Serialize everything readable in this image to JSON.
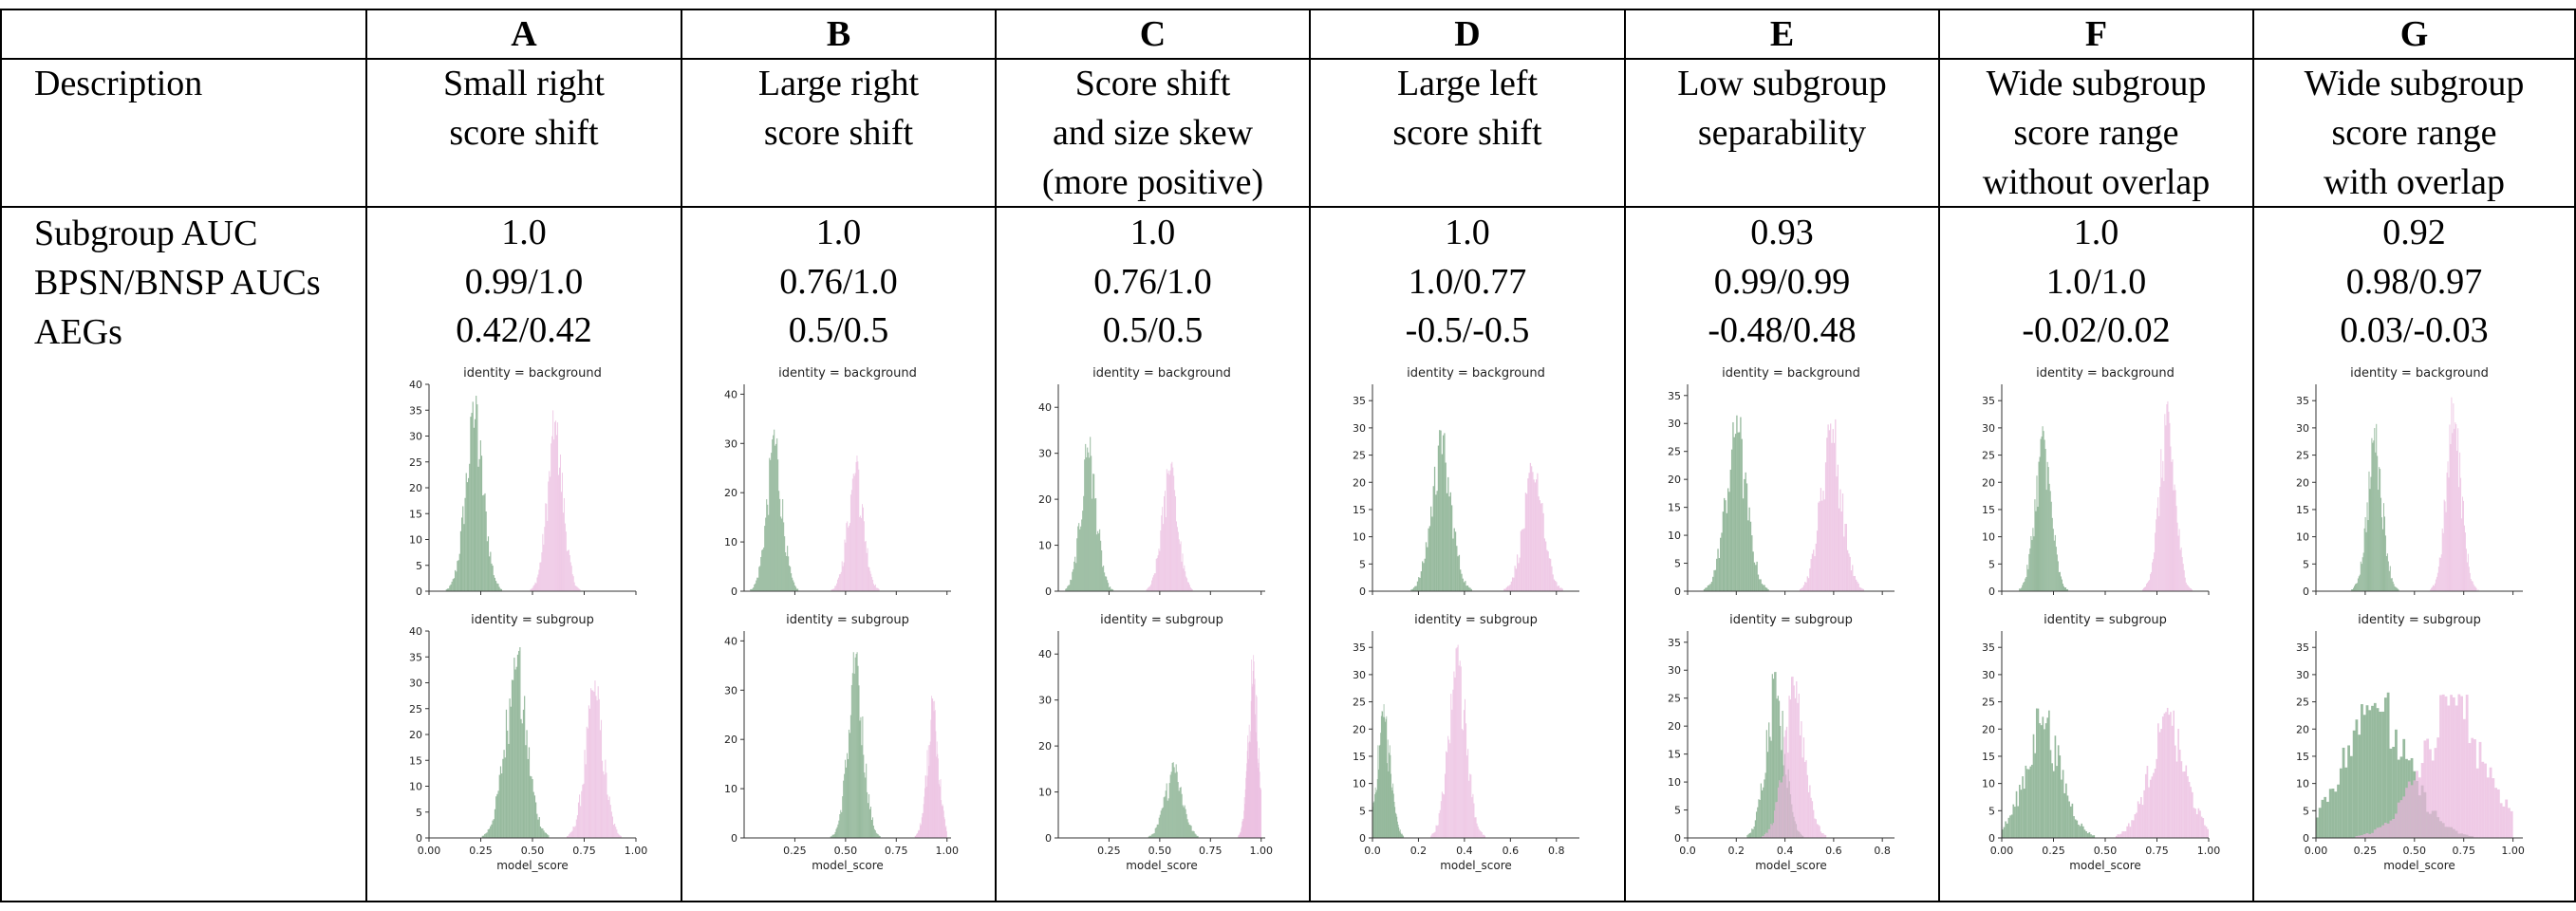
{
  "table": {
    "row_labels": {
      "description": "Description",
      "subgroup_auc": "Subgroup AUC",
      "bpsn_bnsp": "BPSN/BNSP AUCs",
      "aegs": "AEGs"
    },
    "columns": [
      {
        "header": "A",
        "desc_lines": [
          "Small right",
          "score shift"
        ],
        "subgroup_auc": "1.0",
        "bpsn_bnsp": "0.99/1.0",
        "aegs": "0.42/0.42"
      },
      {
        "header": "B",
        "desc_lines": [
          "Large right",
          "score shift"
        ],
        "subgroup_auc": "1.0",
        "bpsn_bnsp": "0.76/1.0",
        "aegs": "0.5/0.5"
      },
      {
        "header": "C",
        "desc_lines": [
          "Score shift",
          "and size skew",
          "(more positive)"
        ],
        "subgroup_auc": "1.0",
        "bpsn_bnsp": "0.76/1.0",
        "aegs": "0.5/0.5"
      },
      {
        "header": "D",
        "desc_lines": [
          "Large left",
          "score shift"
        ],
        "subgroup_auc": "1.0",
        "bpsn_bnsp": "1.0/0.77",
        "aegs": "-0.5/-0.5"
      },
      {
        "header": "E",
        "desc_lines": [
          "Low subgroup",
          "separability"
        ],
        "subgroup_auc": "0.93",
        "bpsn_bnsp": "0.99/0.99",
        "aegs": "-0.48/0.48"
      },
      {
        "header": "F",
        "desc_lines": [
          "Wide subgroup",
          "score range",
          "without overlap"
        ],
        "subgroup_auc": "1.0",
        "bpsn_bnsp": "1.0/1.0",
        "aegs": "-0.02/0.02"
      },
      {
        "header": "G",
        "desc_lines": [
          "Wide subgroup",
          "score range",
          "with overlap"
        ],
        "subgroup_auc": "0.92",
        "bpsn_bnsp": "0.98/0.97",
        "aegs": "0.03/-0.03"
      }
    ]
  },
  "chart_common": {
    "top_title": "identity = background",
    "bottom_title": "identity = subgroup",
    "xlabel": "model_score",
    "negative_color": "#6f9f78",
    "positive_color": "#e9b6dc",
    "spine_color": "#333333"
  },
  "chart_data": [
    {
      "type": "histogram",
      "panel": "A",
      "xticks": [
        "0.00",
        "0.25",
        "0.50",
        "0.75",
        "1.00"
      ],
      "xlim": [
        0,
        1
      ],
      "xtick_values": [
        0,
        0.25,
        0.5,
        0.75,
        1.0
      ],
      "top": {
        "title": "identity = background",
        "ylim": [
          0,
          40
        ],
        "yticks": [
          0,
          5,
          10,
          15,
          20,
          25,
          30,
          35,
          40
        ],
        "series": [
          {
            "name": "negative",
            "center": 0.22,
            "sd": 0.045,
            "peak": 38,
            "lo": 0.06,
            "hi": 0.38
          },
          {
            "name": "positive",
            "center": 0.61,
            "sd": 0.04,
            "peak": 35,
            "lo": 0.48,
            "hi": 0.75
          }
        ]
      },
      "bottom": {
        "title": "identity = subgroup",
        "ylim": [
          0,
          40
        ],
        "yticks": [
          0,
          5,
          10,
          15,
          20,
          25,
          30,
          35,
          40
        ],
        "series": [
          {
            "name": "negative",
            "center": 0.42,
            "sd": 0.055,
            "peak": 37,
            "lo": 0.25,
            "hi": 0.58
          },
          {
            "name": "positive",
            "center": 0.8,
            "sd": 0.045,
            "peak": 31,
            "lo": 0.65,
            "hi": 0.95
          }
        ]
      }
    },
    {
      "type": "histogram",
      "panel": "B",
      "xticks": [
        "0.25",
        "0.50",
        "0.75",
        "1.00"
      ],
      "xlim": [
        0,
        1.02
      ],
      "xtick_values": [
        0.25,
        0.5,
        0.75,
        1.0
      ],
      "top": {
        "title": "identity = background",
        "ylim": [
          0,
          42
        ],
        "yticks": [
          0,
          10,
          20,
          30,
          40
        ],
        "series": [
          {
            "name": "negative",
            "center": 0.15,
            "sd": 0.04,
            "peak": 33,
            "lo": 0.02,
            "hi": 0.3
          },
          {
            "name": "positive",
            "center": 0.55,
            "sd": 0.04,
            "peak": 28,
            "lo": 0.42,
            "hi": 0.68
          }
        ]
      },
      "bottom": {
        "title": "identity = subgroup",
        "ylim": [
          0,
          42
        ],
        "yticks": [
          0,
          10,
          20,
          30,
          40
        ],
        "series": [
          {
            "name": "negative",
            "center": 0.55,
            "sd": 0.04,
            "peak": 38,
            "lo": 0.42,
            "hi": 0.69
          },
          {
            "name": "positive",
            "center": 0.93,
            "sd": 0.03,
            "peak": 29,
            "lo": 0.82,
            "hi": 1.0
          }
        ]
      }
    },
    {
      "type": "histogram",
      "panel": "C",
      "xticks": [
        "0.25",
        "0.50",
        "0.75",
        "1.00"
      ],
      "xlim": [
        0,
        1.02
      ],
      "xtick_values": [
        0.25,
        0.5,
        0.75,
        1.0
      ],
      "top": {
        "title": "identity = background",
        "ylim": [
          0,
          45
        ],
        "yticks": [
          0,
          10,
          20,
          30,
          40
        ],
        "series": [
          {
            "name": "negative",
            "center": 0.15,
            "sd": 0.04,
            "peak": 34,
            "lo": 0.02,
            "hi": 0.3
          },
          {
            "name": "positive",
            "center": 0.55,
            "sd": 0.04,
            "peak": 29,
            "lo": 0.42,
            "hi": 0.68
          }
        ]
      },
      "bottom": {
        "title": "identity = subgroup",
        "ylim": [
          0,
          45
        ],
        "yticks": [
          0,
          10,
          20,
          30,
          40
        ],
        "series": [
          {
            "name": "negative",
            "center": 0.57,
            "sd": 0.045,
            "peak": 17,
            "lo": 0.42,
            "hi": 0.7
          },
          {
            "name": "positive",
            "center": 0.96,
            "sd": 0.025,
            "peak": 41,
            "lo": 0.86,
            "hi": 1.0
          }
        ]
      }
    },
    {
      "type": "histogram",
      "panel": "D",
      "xticks": [
        "0.0",
        "0.2",
        "0.4",
        "0.6",
        "0.8"
      ],
      "xlim": [
        0,
        0.9
      ],
      "xtick_values": [
        0,
        0.2,
        0.4,
        0.6,
        0.8
      ],
      "top": {
        "title": "identity = background",
        "ylim": [
          0,
          38
        ],
        "yticks": [
          0,
          5,
          10,
          15,
          20,
          25,
          30,
          35
        ],
        "series": [
          {
            "name": "negative",
            "center": 0.3,
            "sd": 0.045,
            "peak": 30,
            "lo": 0.14,
            "hi": 0.46
          },
          {
            "name": "positive",
            "center": 0.7,
            "sd": 0.045,
            "peak": 24,
            "lo": 0.55,
            "hi": 0.86
          }
        ]
      },
      "bottom": {
        "title": "identity = subgroup",
        "ylim": [
          0,
          38
        ],
        "yticks": [
          0,
          5,
          10,
          15,
          20,
          25,
          30,
          35
        ],
        "series": [
          {
            "name": "negative",
            "center": 0.05,
            "sd": 0.03,
            "peak": 25,
            "lo": 0.0,
            "hi": 0.17
          },
          {
            "name": "positive",
            "center": 0.37,
            "sd": 0.04,
            "peak": 36,
            "lo": 0.24,
            "hi": 0.5
          }
        ]
      }
    },
    {
      "type": "histogram",
      "panel": "E",
      "xticks": [
        "0.0",
        "0.2",
        "0.4",
        "0.6",
        "0.8"
      ],
      "xlim": [
        0,
        0.85
      ],
      "xtick_values": [
        0,
        0.2,
        0.4,
        0.6,
        0.8
      ],
      "top": {
        "title": "identity = background",
        "ylim": [
          0,
          37
        ],
        "yticks": [
          0,
          5,
          10,
          15,
          20,
          25,
          30,
          35
        ],
        "series": [
          {
            "name": "negative",
            "center": 0.2,
            "sd": 0.045,
            "peak": 32,
            "lo": 0.05,
            "hi": 0.36
          },
          {
            "name": "positive",
            "center": 0.59,
            "sd": 0.045,
            "peak": 32,
            "lo": 0.44,
            "hi": 0.74
          }
        ]
      },
      "bottom": {
        "title": "identity = subgroup",
        "ylim": [
          0,
          37
        ],
        "yticks": [
          0,
          5,
          10,
          15,
          20,
          25,
          30,
          35
        ],
        "series": [
          {
            "name": "negative",
            "center": 0.36,
            "sd": 0.04,
            "peak": 31,
            "lo": 0.22,
            "hi": 0.5
          },
          {
            "name": "positive",
            "center": 0.44,
            "sd": 0.045,
            "peak": 29,
            "lo": 0.3,
            "hi": 0.6
          }
        ]
      }
    },
    {
      "type": "histogram",
      "panel": "F",
      "xticks": [
        "0.00",
        "0.25",
        "0.50",
        "0.75",
        "1.00"
      ],
      "xlim": [
        0,
        1
      ],
      "xtick_values": [
        0,
        0.25,
        0.5,
        0.75,
        1.0
      ],
      "top": {
        "title": "identity = background",
        "ylim": [
          0,
          38
        ],
        "yticks": [
          0,
          5,
          10,
          15,
          20,
          25,
          30,
          35
        ],
        "series": [
          {
            "name": "negative",
            "center": 0.2,
            "sd": 0.04,
            "peak": 31,
            "lo": 0.06,
            "hi": 0.34
          },
          {
            "name": "positive",
            "center": 0.8,
            "sd": 0.04,
            "peak": 35,
            "lo": 0.66,
            "hi": 0.94
          }
        ]
      },
      "bottom": {
        "title": "identity = subgroup",
        "ylim": [
          0,
          38
        ],
        "yticks": [
          0,
          5,
          10,
          15,
          20,
          25,
          30,
          35
        ],
        "series": [
          {
            "name": "negative",
            "center": 0.2,
            "sd": 0.09,
            "peak": 24,
            "lo": 0.0,
            "hi": 0.45
          },
          {
            "name": "positive",
            "center": 0.8,
            "sd": 0.09,
            "peak": 24,
            "lo": 0.55,
            "hi": 1.0
          }
        ]
      }
    },
    {
      "type": "histogram",
      "panel": "G",
      "xticks": [
        "0.00",
        "0.25",
        "0.50",
        "0.75",
        "1.00"
      ],
      "xlim": [
        0,
        1.05
      ],
      "xtick_values": [
        0,
        0.25,
        0.5,
        0.75,
        1.0
      ],
      "top": {
        "title": "identity = background",
        "ylim": [
          0,
          38
        ],
        "yticks": [
          0,
          5,
          10,
          15,
          20,
          25,
          30,
          35
        ],
        "series": [
          {
            "name": "negative",
            "center": 0.3,
            "sd": 0.04,
            "peak": 31,
            "lo": 0.16,
            "hi": 0.44
          },
          {
            "name": "positive",
            "center": 0.7,
            "sd": 0.04,
            "peak": 36,
            "lo": 0.56,
            "hi": 0.84
          }
        ]
      },
      "bottom": {
        "title": "identity = subgroup",
        "ylim": [
          0,
          38
        ],
        "yticks": [
          0,
          5,
          10,
          15,
          20,
          25,
          30,
          35
        ],
        "series": [
          {
            "name": "negative",
            "center": 0.3,
            "sd": 0.17,
            "peak": 27,
            "lo": 0.0,
            "hi": 0.8
          },
          {
            "name": "positive",
            "center": 0.7,
            "sd": 0.17,
            "peak": 27,
            "lo": 0.2,
            "hi": 1.0
          }
        ]
      }
    }
  ]
}
